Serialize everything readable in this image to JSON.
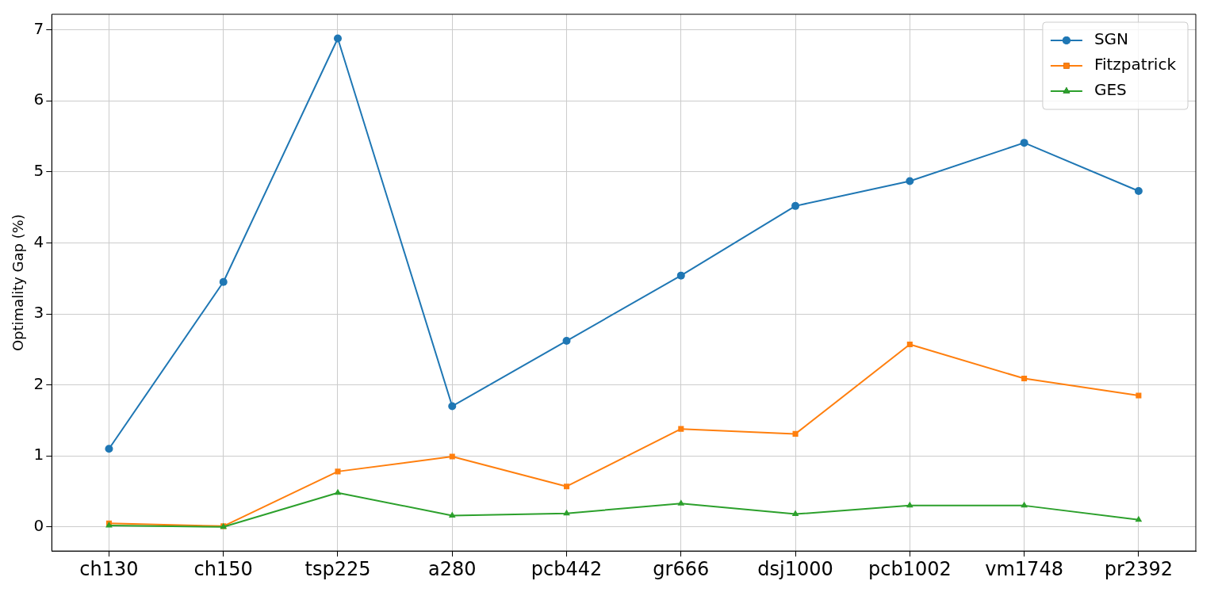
{
  "chart_data": {
    "type": "line",
    "ylabel": "Optimality Gap (%)",
    "categories": [
      "ch130",
      "ch150",
      "tsp225",
      "a280",
      "pcb442",
      "gr666",
      "dsj1000",
      "pcb1002",
      "vm1748",
      "pr2392"
    ],
    "series": [
      {
        "name": "SGN",
        "color": "#1f77b4",
        "marker": "circle",
        "values": [
          1.1,
          3.45,
          6.88,
          1.7,
          2.62,
          3.54,
          4.52,
          4.87,
          5.41,
          4.73
        ]
      },
      {
        "name": "Fitzpatrick",
        "color": "#ff7f0e",
        "marker": "square",
        "values": [
          0.05,
          0.01,
          0.78,
          0.99,
          0.57,
          1.38,
          1.31,
          2.57,
          2.09,
          1.85
        ]
      },
      {
        "name": "GES",
        "color": "#2ca02c",
        "marker": "triangle",
        "values": [
          0.02,
          0.0,
          0.48,
          0.16,
          0.19,
          0.33,
          0.18,
          0.3,
          0.3,
          0.1
        ]
      }
    ],
    "ylim": [
      -0.34,
      7.22
    ],
    "yticks": [
      0,
      1,
      2,
      3,
      4,
      5,
      6,
      7
    ],
    "grid": true,
    "legend": "top right",
    "line_style": "solid"
  }
}
